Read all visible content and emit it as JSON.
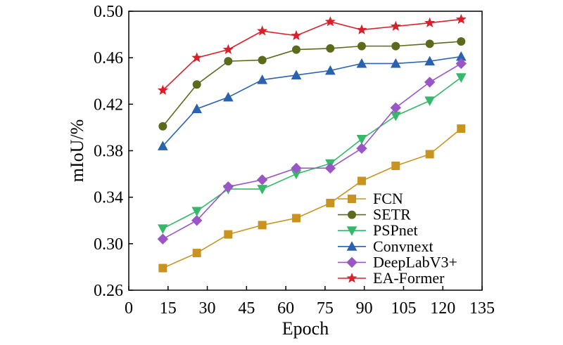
{
  "chart_data": {
    "type": "line",
    "xlabel": "Epoch",
    "ylabel": "mIoU/%",
    "xlim": [
      0,
      135
    ],
    "ylim": [
      0.26,
      0.5
    ],
    "xticks": [
      0,
      15,
      30,
      45,
      60,
      75,
      90,
      105,
      120,
      135
    ],
    "yticks": [
      0.26,
      0.3,
      0.34,
      0.38,
      0.42,
      0.46,
      0.5
    ],
    "xtick_labels": [
      "0",
      "15",
      "30",
      "45",
      "60",
      "75",
      "90",
      "105",
      "120",
      "135"
    ],
    "ytick_labels": [
      "0.26",
      "0.30",
      "0.34",
      "0.38",
      "0.42",
      "0.46",
      "0.50"
    ],
    "grid": false,
    "legend_position": "bottom-right",
    "x": [
      13,
      26,
      38,
      51,
      64,
      77,
      89,
      102,
      115,
      127
    ],
    "series": [
      {
        "name": "FCN",
        "color": "#c8941f",
        "marker": "square",
        "values": [
          0.279,
          0.292,
          0.308,
          0.316,
          0.322,
          0.335,
          0.354,
          0.367,
          0.377,
          0.399
        ]
      },
      {
        "name": "SETR",
        "color": "#5a6b1d",
        "marker": "circle",
        "values": [
          0.401,
          0.437,
          0.457,
          0.458,
          0.467,
          0.468,
          0.47,
          0.47,
          0.472,
          0.474
        ]
      },
      {
        "name": "PSPnet",
        "color": "#36b86a",
        "marker": "triangle-down",
        "values": [
          0.313,
          0.328,
          0.347,
          0.347,
          0.36,
          0.369,
          0.39,
          0.41,
          0.423,
          0.443
        ]
      },
      {
        "name": "Convnext",
        "color": "#2a62ad",
        "marker": "triangle-up",
        "values": [
          0.384,
          0.416,
          0.426,
          0.441,
          0.445,
          0.449,
          0.455,
          0.455,
          0.457,
          0.461
        ]
      },
      {
        "name": "DeepLabV3+",
        "color": "#9a56c4",
        "marker": "diamond",
        "values": [
          0.304,
          0.32,
          0.349,
          0.355,
          0.365,
          0.365,
          0.382,
          0.417,
          0.439,
          0.455
        ]
      },
      {
        "name": "EA-Former",
        "color": "#d9202a",
        "marker": "star",
        "values": [
          0.432,
          0.46,
          0.467,
          0.483,
          0.479,
          0.491,
          0.484,
          0.487,
          0.49,
          0.493
        ]
      }
    ]
  }
}
